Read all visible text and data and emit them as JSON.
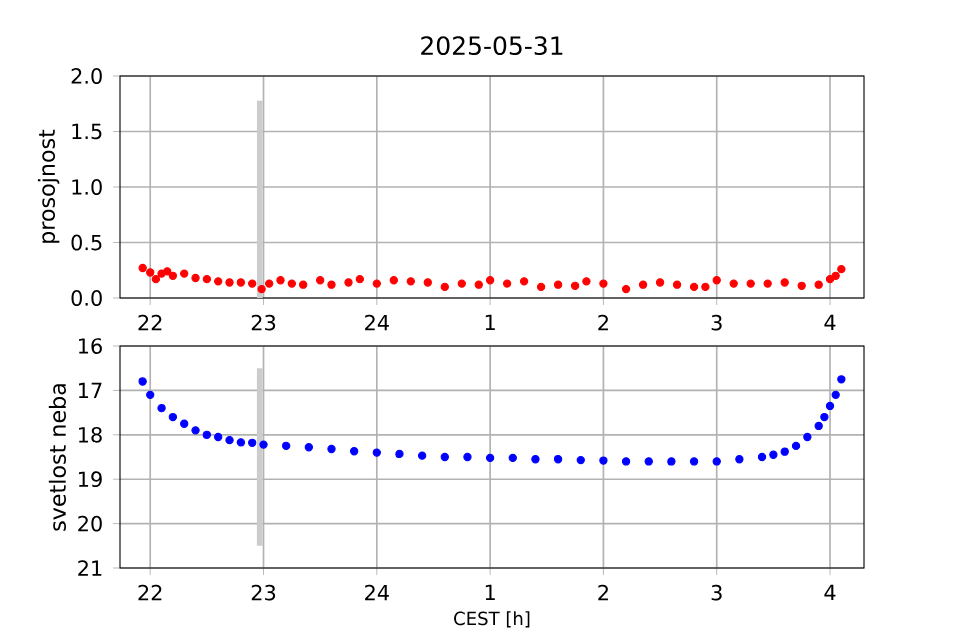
{
  "chart_data": [
    {
      "type": "scatter",
      "title": "2025-05-31",
      "ylabel": "prosojnost",
      "grid": true,
      "marker": "circle",
      "xlim": [
        "2025-05-31T21:44",
        "2025-06-01T04:18"
      ],
      "ylim": [
        0,
        2
      ],
      "xticks": [
        {
          "value": "2025-05-31T22:00",
          "label": "22"
        },
        {
          "value": "2025-05-31T23:00",
          "label": "23"
        },
        {
          "value": "2025-06-01T00:00",
          "label": "24"
        },
        {
          "value": "2025-06-01T01:00",
          "label": "1"
        },
        {
          "value": "2025-06-01T02:00",
          "label": "2"
        },
        {
          "value": "2025-06-01T03:00",
          "label": "3"
        },
        {
          "value": "2025-06-01T04:00",
          "label": "4"
        }
      ],
      "yticks": [
        {
          "value": 0,
          "label": "0.0"
        },
        {
          "value": 0.5,
          "label": "0.5"
        },
        {
          "value": 1,
          "label": "1.0"
        },
        {
          "value": 1.5,
          "label": "1.5"
        },
        {
          "value": 2,
          "label": "2.0"
        }
      ],
      "series": [
        {
          "type": "bar",
          "color": "#cccccc",
          "x": [
            "2025-05-31T22:58"
          ],
          "base": [
            0
          ],
          "values": [
            1.78
          ]
        },
        {
          "color": "#ff0000",
          "x": [
            "2025-05-31T21:56",
            "2025-05-31T22:00",
            "2025-05-31T22:03",
            "2025-05-31T22:06",
            "2025-05-31T22:09",
            "2025-05-31T22:12",
            "2025-05-31T22:18",
            "2025-05-31T22:24",
            "2025-05-31T22:30",
            "2025-05-31T22:36",
            "2025-05-31T22:42",
            "2025-05-31T22:48",
            "2025-05-31T22:54",
            "2025-05-31T22:59",
            "2025-05-31T23:03",
            "2025-05-31T23:09",
            "2025-05-31T23:15",
            "2025-05-31T23:21",
            "2025-05-31T23:30",
            "2025-05-31T23:36",
            "2025-05-31T23:45",
            "2025-05-31T23:51",
            "2025-06-01T00:00",
            "2025-06-01T00:09",
            "2025-06-01T00:18",
            "2025-06-01T00:27",
            "2025-06-01T00:36",
            "2025-06-01T00:45",
            "2025-06-01T00:54",
            "2025-06-01T01:00",
            "2025-06-01T01:09",
            "2025-06-01T01:18",
            "2025-06-01T01:27",
            "2025-06-01T01:36",
            "2025-06-01T01:45",
            "2025-06-01T01:51",
            "2025-06-01T02:00",
            "2025-06-01T02:12",
            "2025-06-01T02:21",
            "2025-06-01T02:30",
            "2025-06-01T02:39",
            "2025-06-01T02:48",
            "2025-06-01T02:54",
            "2025-06-01T03:00",
            "2025-06-01T03:09",
            "2025-06-01T03:18",
            "2025-06-01T03:27",
            "2025-06-01T03:36",
            "2025-06-01T03:45",
            "2025-06-01T03:54",
            "2025-06-01T04:00",
            "2025-06-01T04:03",
            "2025-06-01T04:06"
          ],
          "values": [
            0.27,
            0.23,
            0.17,
            0.22,
            0.24,
            0.2,
            0.22,
            0.18,
            0.17,
            0.15,
            0.14,
            0.14,
            0.13,
            0.08,
            0.13,
            0.16,
            0.13,
            0.12,
            0.16,
            0.12,
            0.14,
            0.17,
            0.13,
            0.16,
            0.15,
            0.14,
            0.1,
            0.13,
            0.12,
            0.16,
            0.13,
            0.15,
            0.1,
            0.12,
            0.11,
            0.15,
            0.13,
            0.08,
            0.12,
            0.14,
            0.12,
            0.1,
            0.1,
            0.16,
            0.13,
            0.13,
            0.13,
            0.14,
            0.11,
            0.12,
            0.17,
            0.2,
            0.26
          ]
        }
      ]
    },
    {
      "type": "scatter",
      "xlabel": "CEST [h]",
      "ylabel": "svetlost neba",
      "grid": true,
      "marker": "circle",
      "xlim": [
        "2025-05-31T21:44",
        "2025-06-01T04:18"
      ],
      "ylim": [
        21,
        16
      ],
      "xticks": [
        {
          "value": "2025-05-31T22:00",
          "label": "22"
        },
        {
          "value": "2025-05-31T23:00",
          "label": "23"
        },
        {
          "value": "2025-06-01T00:00",
          "label": "24"
        },
        {
          "value": "2025-06-01T01:00",
          "label": "1"
        },
        {
          "value": "2025-06-01T02:00",
          "label": "2"
        },
        {
          "value": "2025-06-01T03:00",
          "label": "3"
        },
        {
          "value": "2025-06-01T04:00",
          "label": "4"
        }
      ],
      "yticks": [
        16,
        17,
        18,
        19,
        20,
        21
      ],
      "series": [
        {
          "type": "bar",
          "color": "#cccccc",
          "x": [
            "2025-05-31T22:58"
          ],
          "base": [
            16.5
          ],
          "values": [
            4.0
          ]
        },
        {
          "color": "#0000ff",
          "x": [
            "2025-05-31T21:56",
            "2025-05-31T22:00",
            "2025-05-31T22:06",
            "2025-05-31T22:12",
            "2025-05-31T22:18",
            "2025-05-31T22:24",
            "2025-05-31T22:30",
            "2025-05-31T22:36",
            "2025-05-31T22:42",
            "2025-05-31T22:48",
            "2025-05-31T22:54",
            "2025-05-31T23:00",
            "2025-05-31T23:12",
            "2025-05-31T23:24",
            "2025-05-31T23:36",
            "2025-05-31T23:48",
            "2025-06-01T00:00",
            "2025-06-01T00:12",
            "2025-06-01T00:24",
            "2025-06-01T00:36",
            "2025-06-01T00:48",
            "2025-06-01T01:00",
            "2025-06-01T01:12",
            "2025-06-01T01:24",
            "2025-06-01T01:36",
            "2025-06-01T01:48",
            "2025-06-01T02:00",
            "2025-06-01T02:12",
            "2025-06-01T02:24",
            "2025-06-01T02:36",
            "2025-06-01T02:48",
            "2025-06-01T03:00",
            "2025-06-01T03:12",
            "2025-06-01T03:24",
            "2025-06-01T03:30",
            "2025-06-01T03:36",
            "2025-06-01T03:42",
            "2025-06-01T03:48",
            "2025-06-01T03:54",
            "2025-06-01T03:57",
            "2025-06-01T04:00",
            "2025-06-01T04:03",
            "2025-06-01T04:06"
          ],
          "values": [
            16.8,
            17.1,
            17.4,
            17.6,
            17.75,
            17.9,
            18.0,
            18.05,
            18.12,
            18.17,
            18.18,
            18.22,
            18.25,
            18.28,
            18.32,
            18.37,
            18.4,
            18.43,
            18.47,
            18.5,
            18.5,
            18.52,
            18.52,
            18.55,
            18.55,
            18.57,
            18.58,
            18.6,
            18.6,
            18.6,
            18.6,
            18.6,
            18.55,
            18.5,
            18.45,
            18.38,
            18.25,
            18.05,
            17.8,
            17.6,
            17.35,
            17.1,
            16.75
          ]
        }
      ]
    }
  ]
}
